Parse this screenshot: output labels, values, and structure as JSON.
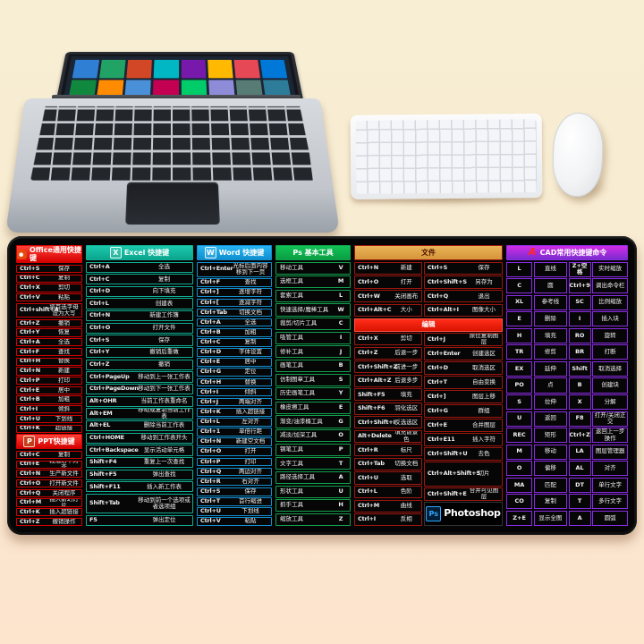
{
  "colors": {
    "office": "#d40000",
    "excel": "#0fae93",
    "word": "#128fd0",
    "ps": "#12a04d",
    "file_border": "#9c1710",
    "file_header": "#d6953a",
    "edit": "#d81400",
    "cad": "#8a2be2",
    "photoshop": "#31a8ff"
  },
  "icons": {
    "office-icon": "",
    "ppt-icon": "P",
    "excel-icon": "X",
    "word-icon": "W",
    "cad-icon": "A"
  },
  "columns": [
    {
      "id": "office",
      "blocks": [
        {
          "type": "header",
          "icon": "office-icon",
          "text": "Office通用快捷键"
        },
        {
          "type": "kv",
          "rows": [
            [
              "Ctrl+S",
              "保存"
            ],
            [
              "Ctrl+C",
              "复制"
            ],
            [
              "Ctrl+X",
              "剪切"
            ],
            [
              "Ctrl+V",
              "粘贴"
            ],
            [
              "Ctrl+shift+A",
              "将首选字母设为大写",
              "tall"
            ],
            [
              "Ctrl+Z",
              "撤销"
            ],
            [
              "Ctrl+Y",
              "恢复"
            ],
            [
              "Ctrl+A",
              "全选"
            ],
            [
              "Ctrl+F",
              "查找"
            ],
            [
              "Ctrl+H",
              "替换"
            ],
            [
              "Ctrl+N",
              "新建"
            ],
            [
              "Ctrl+P",
              "打印"
            ],
            [
              "Ctrl+E",
              "居中"
            ],
            [
              "Ctrl+B",
              "加粗"
            ],
            [
              "Ctrl+I",
              "倾斜"
            ],
            [
              "Ctrl+U",
              "下划线"
            ],
            [
              "Ctrl+K",
              "超链接"
            ]
          ]
        },
        {
          "type": "header",
          "icon": "ppt-icon",
          "text": "PPT快捷键"
        },
        {
          "type": "kv",
          "rows": [
            [
              "Ctrl+C",
              "复制"
            ],
            [
              "Ctrl+E",
              "段落居中对齐"
            ],
            [
              "Ctrl+N",
              "生产新文件"
            ],
            [
              "Ctrl+O",
              "打开新文件"
            ],
            [
              "Ctrl+Q",
              "关闭程序"
            ],
            [
              "Ctrl+M",
              "插入新幻灯片"
            ],
            [
              "Ctrl+K",
              "插入超链接"
            ],
            [
              "Ctrl+Z",
              "撤销操作"
            ]
          ]
        }
      ]
    },
    {
      "id": "excel",
      "blocks": [
        {
          "type": "header",
          "icon": "excel-icon",
          "text": "Excel 快捷键"
        },
        {
          "type": "kv",
          "rows": [
            [
              "Ctrl+A",
              "全选"
            ],
            [
              "Ctrl+C",
              "复制"
            ],
            [
              "Ctrl+D",
              "向下填充"
            ],
            [
              "Ctrl+L",
              "创建表"
            ],
            [
              "Ctrl+N",
              "新建工作簿"
            ],
            [
              "Ctrl+O",
              "打开文件"
            ],
            [
              "Ctrl+S",
              "保存"
            ],
            [
              "Ctrl+Y",
              "撤销后重做"
            ],
            [
              "Ctrl+Z",
              "撤销"
            ],
            [
              "Ctrl+PageUp",
              "移动到上一张工作表"
            ],
            [
              "Ctrl+PageDown",
              "移动到下一张工作表"
            ],
            [
              "Alt+OHR",
              "当前工作表重命名"
            ],
            [
              "Alt+EM",
              "移动或复制当前工作表"
            ],
            [
              "Alt+EL",
              "删除当前工作表"
            ],
            [
              "Ctrl+HOME",
              "移动到工作表开头"
            ],
            [
              "Ctrl+Backspace",
              "显示活动单元格"
            ],
            [
              "Shift+F4",
              "重复上一次查找"
            ],
            [
              "Shift+F5",
              "弹出查找"
            ],
            [
              "Shift+F11",
              "插入新工作表"
            ],
            [
              "Shift+Tab",
              "移动到前一个选项或者选项组",
              "tall"
            ],
            [
              "F5",
              "弹出定位"
            ]
          ]
        }
      ]
    },
    {
      "id": "word",
      "blocks": [
        {
          "type": "header",
          "icon": "word-icon",
          "text": "Word 快捷键"
        },
        {
          "type": "kv",
          "rows": [
            [
              "Ctrl+Enter",
              "光标后面内容移到下一页",
              "tall"
            ],
            [
              "Ctrl+F",
              "查找"
            ],
            [
              "Ctrl+]",
              "逐增字符"
            ],
            [
              "Ctrl+[",
              "逐减字符"
            ],
            [
              "Ctrl+Tab",
              "切换文档"
            ],
            [
              "Ctrl+A",
              "全选"
            ],
            [
              "Ctrl+B",
              "加粗"
            ],
            [
              "Ctrl+C",
              "复制"
            ],
            [
              "Ctrl+D",
              "字体设置"
            ],
            [
              "Ctrl+E",
              "居中"
            ],
            [
              "Ctrl+G",
              "定位"
            ],
            [
              "Ctrl+H",
              "替换"
            ],
            [
              "Ctrl+I",
              "倾斜"
            ],
            [
              "Ctrl+J",
              "两端对齐"
            ],
            [
              "Ctrl+K",
              "插入超链接"
            ],
            [
              "Ctrl+L",
              "左对齐"
            ],
            [
              "Ctrl+1",
              "单倍行距"
            ],
            [
              "Ctrl+N",
              "新建空文档"
            ],
            [
              "Ctrl+O",
              "打开"
            ],
            [
              "Ctrl+P",
              "打印"
            ],
            [
              "Ctrl+Q",
              "两边对齐"
            ],
            [
              "Ctrl+R",
              "右对齐"
            ],
            [
              "Ctrl+S",
              "保存"
            ],
            [
              "Ctrl+T",
              "首行缩进"
            ],
            [
              "Ctrl+U",
              "下划线"
            ],
            [
              "Ctrl+V",
              "粘贴"
            ]
          ]
        }
      ]
    },
    {
      "id": "ps",
      "blocks": [
        {
          "type": "header",
          "text": "Ps 基本工具"
        },
        {
          "type": "tool",
          "rows": [
            [
              "移动工具",
              "V"
            ],
            [
              "选框工具",
              "M"
            ],
            [
              "套索工具",
              "L"
            ],
            [
              "快速选择/魔棒工具",
              "W"
            ],
            [
              "裁剪/切片工具",
              "C"
            ],
            [
              "吸管工具",
              "I"
            ],
            [
              "修补工具",
              "J"
            ],
            [
              "画笔工具",
              "B"
            ],
            [
              "仿制图章工具",
              "S"
            ],
            [
              "历史画笔工具",
              "Y"
            ],
            [
              "橡皮擦工具",
              "E"
            ],
            [
              "渐变/油漆桶工具",
              "G"
            ],
            [
              "减淡/加深工具",
              "O"
            ],
            [
              "钢笔工具",
              "P"
            ],
            [
              "文字工具",
              "T"
            ],
            [
              "路径选择工具",
              "A"
            ],
            [
              "形状工具",
              "U"
            ],
            [
              "抓手工具",
              "H"
            ],
            [
              "缩放工具",
              "Z"
            ]
          ]
        }
      ]
    },
    {
      "id": "file",
      "blocks": [
        {
          "type": "header",
          "text": "文件"
        },
        {
          "type": "pair2",
          "left": [
            [
              "Ctrl+N",
              "新建"
            ],
            [
              "Ctrl+O",
              "打开"
            ],
            [
              "Ctrl+W",
              "关闭画布"
            ],
            [
              "Ctrl+Alt+C",
              "大小"
            ]
          ],
          "right": [
            [
              "Ctrl+S",
              "保存"
            ],
            [
              "Ctrl+Shift+S",
              "另存为"
            ],
            [
              "Ctrl+Q",
              "退出"
            ],
            [
              "Ctrl+Alt+I",
              "图像大小"
            ]
          ]
        },
        {
          "type": "subheader",
          "text": "编辑"
        },
        {
          "type": "pair2",
          "left": [
            [
              "Ctrl+X",
              "剪切"
            ],
            [
              "Ctrl+Z",
              "后退一步"
            ],
            [
              "Ctrl+Shift+Z",
              "前进一步"
            ],
            [
              "Ctrl+Alt+Z",
              "后退多步"
            ],
            [
              "Shift+F5",
              "填充"
            ],
            [
              "Shift+F6",
              "羽化选区"
            ],
            [
              "Ctrl+Shift+I",
              "反选选区"
            ],
            [
              "Alt+Delete",
              "填充前景色"
            ],
            [
              "Ctrl+R",
              "标尺"
            ],
            [
              "Ctrl+Tab",
              "切换文档"
            ],
            [
              "Ctrl+U",
              "选取"
            ],
            [
              "Ctrl+L",
              "色阶"
            ],
            [
              "Ctrl+M",
              "曲线"
            ],
            [
              "Ctrl+I",
              "反相"
            ]
          ],
          "right": [
            [
              "Ctrl+J",
              "原位复制图层"
            ],
            [
              "Ctrl+Enter",
              "创建选区"
            ],
            [
              "Ctrl+D",
              "取消选区"
            ],
            [
              "Ctrl+T",
              "自由变换"
            ],
            [
              "Ctrl+]",
              "图层上移"
            ],
            [
              "Ctrl+G",
              "群组"
            ],
            [
              "Ctrl+E",
              "合并图层"
            ],
            [
              "Ctrl+E11",
              "插入字符"
            ],
            [
              "Ctrl+Shift+U",
              "去色"
            ],
            [
              "Ctrl+Alt+Shift+S",
              "切片",
              "tall"
            ],
            [
              "Ctrl+Shift+E",
              "合并可见图层"
            ],
            [
              "Ps",
              "Photoshop",
              "logo"
            ]
          ]
        }
      ]
    },
    {
      "id": "cad",
      "blocks": [
        {
          "type": "header",
          "icon": "cad-icon",
          "text": "CAD常用快捷键命令"
        },
        {
          "type": "kv4",
          "rows": [
            [
              "L",
              "直线",
              "Z+空格",
              "实时缩放"
            ],
            [
              "C",
              "圆",
              "Ctrl+9",
              "调出命令栏"
            ],
            [
              "XL",
              "参考线",
              "SC",
              "比例缩放"
            ],
            [
              "E",
              "删除",
              "I",
              "插入块"
            ],
            [
              "H",
              "填充",
              "RO",
              "旋转"
            ],
            [
              "TR",
              "修剪",
              "BR",
              "打断"
            ],
            [
              "EX",
              "延伸",
              "Shift",
              "取消选择"
            ],
            [
              "PO",
              "点",
              "B",
              "创建块"
            ],
            [
              "S",
              "拉伸",
              "X",
              "分解"
            ],
            [
              "U",
              "返回",
              "F8",
              "打开/关闭正交"
            ],
            [
              "REC",
              "矩形",
              "Ctrl+Z",
              "返回上一步操作"
            ],
            [
              "M",
              "移动",
              "LA",
              "图层管理器"
            ],
            [
              "O",
              "偏移",
              "AL",
              "对齐"
            ],
            [
              "MA",
              "匹配",
              "DT",
              "单行文字"
            ],
            [
              "CO",
              "复制",
              "T",
              "多行文字"
            ],
            [
              "Z+E",
              "显示全图",
              "A",
              "圆弧"
            ]
          ]
        }
      ]
    }
  ]
}
